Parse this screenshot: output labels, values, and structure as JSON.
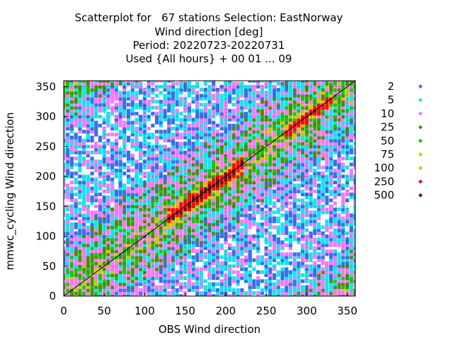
{
  "title": {
    "line1": "Scatterplot for   67 stations Selection: EastNorway",
    "line2": "Wind direction [deg]",
    "line3": "Period: 20220723-20220731",
    "line4": "Used {All hours} + 00 01 ... 09"
  },
  "chart_data": {
    "type": "heatmap",
    "xlabel": "OBS Wind direction",
    "ylabel": "mmwc_cycling Wind direction",
    "xlim": [
      0,
      360
    ],
    "ylim": [
      0,
      360
    ],
    "x_ticks": [
      0,
      50,
      100,
      150,
      200,
      250,
      300,
      350
    ],
    "y_ticks": [
      0,
      50,
      100,
      150,
      200,
      250,
      300,
      350
    ],
    "diagonal_line": true,
    "grid": true,
    "legend_placement": "right",
    "legend": [
      {
        "label": "2",
        "color": "#3a6fe8"
      },
      {
        "label": "5",
        "color": "#18e3ee"
      },
      {
        "label": "10",
        "color": "#f57af5"
      },
      {
        "label": "25",
        "color": "#4f8a10"
      },
      {
        "label": "50",
        "color": "#1fbf1a"
      },
      {
        "label": "75",
        "color": "#c8c818"
      },
      {
        "label": "100",
        "color": "#f0b414"
      },
      {
        "label": "250",
        "color": "#ff0a0a"
      },
      {
        "label": "500",
        "color": "#7a0f0f"
      }
    ]
  }
}
